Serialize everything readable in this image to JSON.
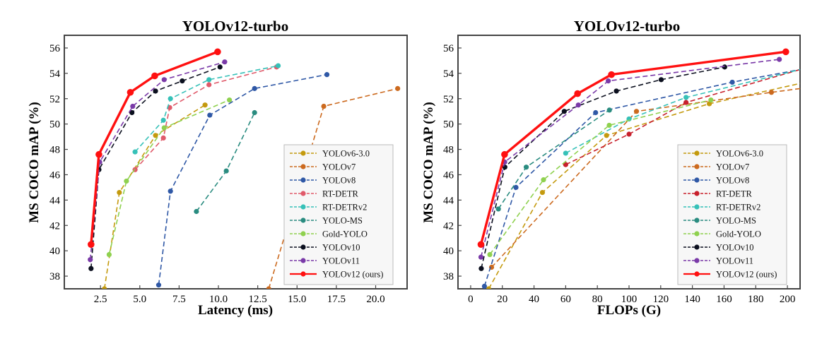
{
  "chart_data": [
    {
      "type": "line",
      "title": "YOLOv12-turbo",
      "xlabel": "Latency (ms)",
      "ylabel": "MS COCO mAP (%)",
      "xlim": [
        0.2,
        22.0
      ],
      "ylim": [
        37.0,
        57.0
      ],
      "xticks": [
        "2.5",
        "5.0",
        "7.5",
        "10.0",
        "12.5",
        "15.0",
        "17.5",
        "20.0"
      ],
      "xtick_values": [
        2.5,
        5.0,
        7.5,
        10.0,
        12.5,
        15.0,
        17.5,
        20.0
      ],
      "yticks": [
        "38",
        "40",
        "42",
        "44",
        "46",
        "48",
        "50",
        "52",
        "54",
        "56"
      ],
      "ytick_values": [
        38,
        40,
        42,
        44,
        46,
        48,
        50,
        52,
        54,
        56
      ],
      "grid": false,
      "legend_position": "lower-right",
      "series": [
        {
          "name": "YOLOv6-3.0",
          "color": "#c49a0e",
          "dashed": true,
          "x": [
            2.75,
            3.7,
            6.0,
            9.15
          ],
          "y": [
            37.0,
            44.6,
            49.1,
            51.5
          ]
        },
        {
          "name": "YOLOv7",
          "color": "#cc6a1f",
          "dashed": true,
          "x": [
            13.2,
            16.7,
            21.4
          ],
          "y": [
            37.0,
            51.4,
            52.8
          ]
        },
        {
          "name": "YOLOv8",
          "color": "#2f58a6",
          "dashed": true,
          "x": [
            6.2,
            6.95,
            9.45,
            12.3,
            16.9
          ],
          "y": [
            37.3,
            44.7,
            50.7,
            52.8,
            53.9
          ]
        },
        {
          "name": "RT-DETR",
          "color": "#e05a6a",
          "dashed": true,
          "x": [
            4.7,
            6.5,
            6.9,
            9.4,
            13.7
          ],
          "y": [
            46.4,
            48.9,
            51.3,
            53.1,
            54.5
          ]
        },
        {
          "name": "RT-DETRv2",
          "color": "#36c1b8",
          "dashed": true,
          "x": [
            4.7,
            6.5,
            6.95,
            9.4,
            13.8
          ],
          "y": [
            47.8,
            50.3,
            52.0,
            53.5,
            54.6
          ]
        },
        {
          "name": "YOLO-MS",
          "color": "#2a8c80",
          "dashed": true,
          "x": [
            8.6,
            10.5,
            12.3
          ],
          "y": [
            43.1,
            46.3,
            50.9
          ]
        },
        {
          "name": "Gold-YOLO",
          "color": "#8fd14f",
          "dashed": true,
          "x": [
            3.05,
            4.15,
            6.55,
            10.7
          ],
          "y": [
            39.7,
            45.5,
            49.7,
            51.9
          ]
        },
        {
          "name": "YOLOv10",
          "color": "#0b0f1e",
          "dashed": true,
          "x": [
            1.9,
            2.4,
            4.5,
            6.0,
            7.7,
            10.1
          ],
          "y": [
            38.6,
            46.4,
            50.9,
            52.6,
            53.4,
            54.5
          ]
        },
        {
          "name": "YOLOv11",
          "color": "#7a3aa8",
          "dashed": true,
          "x": [
            1.85,
            2.45,
            4.55,
            6.55,
            10.4
          ],
          "y": [
            39.3,
            47.0,
            51.4,
            53.5,
            54.9
          ]
        },
        {
          "name": "YOLOv12 (ours)",
          "color": "#ff1010",
          "dashed": false,
          "x": [
            1.9,
            2.4,
            4.4,
            5.95,
            9.95
          ],
          "y": [
            40.5,
            47.6,
            52.5,
            53.8,
            55.7
          ]
        }
      ]
    },
    {
      "type": "line",
      "title": "YOLOv12-turbo",
      "xlabel": "FLOPs (G)",
      "ylabel": "MS COCO mAP (%)",
      "xlim": [
        -8,
        208
      ],
      "ylim": [
        37.0,
        57.0
      ],
      "xticks": [
        "0",
        "20",
        "40",
        "60",
        "80",
        "100",
        "120",
        "140",
        "160",
        "180",
        "200"
      ],
      "xtick_values": [
        0,
        20,
        40,
        60,
        80,
        100,
        120,
        140,
        160,
        180,
        200
      ],
      "yticks": [
        "38",
        "40",
        "42",
        "44",
        "46",
        "48",
        "50",
        "52",
        "54",
        "56"
      ],
      "ytick_values": [
        38,
        40,
        42,
        44,
        46,
        48,
        50,
        52,
        54,
        56
      ],
      "grid": false,
      "legend_position": "lower-right",
      "series": [
        {
          "name": "YOLOv6-3.0",
          "color": "#c49a0e",
          "dashed": true,
          "x": [
            11.4,
            45.3,
            85.8,
            150.7,
            208
          ],
          "y": [
            37.0,
            44.6,
            49.1,
            51.6,
            53.2
          ]
        },
        {
          "name": "YOLOv7",
          "color": "#cc6a1f",
          "dashed": true,
          "x": [
            13.2,
            104.7,
            189.9,
            208
          ],
          "y": [
            38.7,
            51.0,
            52.5,
            52.8
          ]
        },
        {
          "name": "YOLOv8",
          "color": "#2f58a6",
          "dashed": true,
          "x": [
            8.7,
            28.6,
            78.9,
            165.2,
            208
          ],
          "y": [
            37.2,
            45.0,
            50.9,
            53.3,
            54.3
          ]
        },
        {
          "name": "RT-DETR",
          "color": "#c8202c",
          "dashed": true,
          "x": [
            60,
            100,
            136,
            208
          ],
          "y": [
            46.8,
            49.2,
            51.7,
            54.3
          ]
        },
        {
          "name": "RT-DETRv2",
          "color": "#36c1b8",
          "dashed": true,
          "x": [
            60,
            100,
            136,
            208
          ],
          "y": [
            47.7,
            50.4,
            52.1,
            54.3
          ]
        },
        {
          "name": "YOLO-MS",
          "color": "#2a8c80",
          "dashed": true,
          "x": [
            17.5,
            35.1,
            87.6
          ],
          "y": [
            43.3,
            46.6,
            51.1
          ]
        },
        {
          "name": "Gold-YOLO",
          "color": "#8fd14f",
          "dashed": true,
          "x": [
            12.1,
            46.0,
            87.5,
            151.7
          ],
          "y": [
            39.7,
            45.6,
            49.9,
            51.9
          ]
        },
        {
          "name": "YOLOv10",
          "color": "#0b0f1e",
          "dashed": true,
          "x": [
            6.7,
            21.6,
            59.1,
            92.0,
            120.3,
            160.4
          ],
          "y": [
            38.6,
            46.6,
            51.0,
            52.6,
            53.5,
            54.5
          ]
        },
        {
          "name": "YOLOv11",
          "color": "#7a3aa8",
          "dashed": true,
          "x": [
            6.5,
            21.5,
            68.0,
            86.9,
            194.9
          ],
          "y": [
            39.5,
            47.0,
            51.5,
            53.4,
            55.1
          ]
        },
        {
          "name": "YOLOv12 (ours)",
          "color": "#ff1010",
          "dashed": false,
          "x": [
            6.5,
            21.4,
            67.5,
            88.9,
            199.0
          ],
          "y": [
            40.5,
            47.6,
            52.4,
            53.9,
            55.7
          ]
        }
      ]
    }
  ]
}
